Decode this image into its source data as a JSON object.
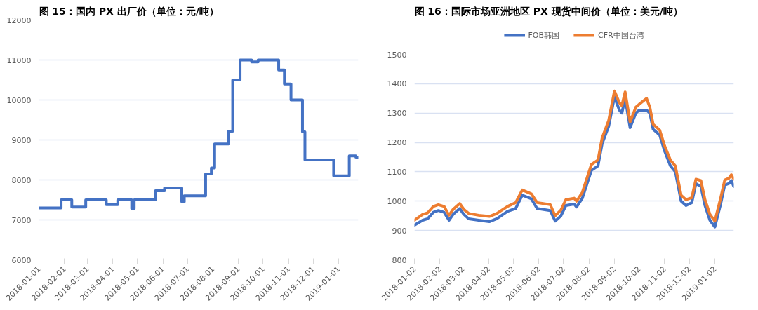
{
  "chart_data": [
    {
      "type": "step",
      "title": "图 15：国内 PX 出厂价（单位：元/吨）",
      "x": [
        "2018-01-01",
        "2018-01-28",
        "2018-02-10",
        "2018-02-27",
        "2018-03-24",
        "2018-04-07",
        "2018-04-24",
        "2018-04-27",
        "2018-05-23",
        "2018-06-03",
        "2018-06-24",
        "2018-06-27",
        "2018-07-23",
        "2018-07-30",
        "2018-08-03",
        "2018-08-20",
        "2018-08-25",
        "2018-09-03",
        "2018-09-17",
        "2018-09-25",
        "2018-10-20",
        "2018-10-27",
        "2018-11-04",
        "2018-11-18",
        "2018-11-21",
        "2018-12-26",
        "2019-01-14",
        "2019-01-22",
        "2019-01-25"
      ],
      "series": [
        {
          "color": "#4472c4",
          "values": [
            7300,
            7500,
            7320,
            7500,
            7380,
            7500,
            7280,
            7500,
            7730,
            7800,
            7450,
            7600,
            8150,
            8300,
            8900,
            9220,
            10500,
            11000,
            10950,
            11000,
            10750,
            10400,
            10000,
            9200,
            8500,
            8100,
            8600,
            8570,
            8570
          ]
        }
      ],
      "xlim": [
        "2018-01-01",
        "2019-01-25"
      ],
      "xticks": [
        "2018-01-01",
        "2018-02-01",
        "2018-03-01",
        "2018-04-01",
        "2018-05-01",
        "2018-06-01",
        "2018-07-01",
        "2018-08-01",
        "2018-09-01",
        "2018-10-01",
        "2018-11-01",
        "2018-12-01",
        "2019-01-01"
      ],
      "ylim": [
        6000,
        12000
      ],
      "yticks": [
        6000,
        7000,
        8000,
        9000,
        10000,
        11000,
        12000
      ],
      "grid": "y",
      "legend": false
    },
    {
      "type": "line",
      "title": "图 16：国际市场亚洲地区 PX 现货中间价（单位：美元/吨）",
      "x": [
        "2018-01-02",
        "2018-01-12",
        "2018-01-18",
        "2018-01-25",
        "2018-01-31",
        "2018-02-07",
        "2018-02-13",
        "2018-02-18",
        "2018-02-26",
        "2018-03-03",
        "2018-03-09",
        "2018-03-21",
        "2018-04-03",
        "2018-04-12",
        "2018-04-25",
        "2018-05-05",
        "2018-05-13",
        "2018-05-24",
        "2018-05-31",
        "2018-06-16",
        "2018-06-22",
        "2018-06-29",
        "2018-07-05",
        "2018-07-15",
        "2018-07-18",
        "2018-07-25",
        "2018-08-05",
        "2018-08-13",
        "2018-08-18",
        "2018-08-26",
        "2018-09-02",
        "2018-09-08",
        "2018-09-11",
        "2018-09-15",
        "2018-09-21",
        "2018-09-28",
        "2018-10-02",
        "2018-10-11",
        "2018-10-15",
        "2018-10-19",
        "2018-10-27",
        "2018-11-02",
        "2018-11-09",
        "2018-11-15",
        "2018-11-22",
        "2018-11-28",
        "2018-12-05",
        "2018-12-10",
        "2018-12-16",
        "2018-12-21",
        "2018-12-27",
        "2019-01-02",
        "2019-01-09",
        "2019-01-14",
        "2019-01-19",
        "2019-01-22",
        "2019-01-25"
      ],
      "series": [
        {
          "name": "FOB韩国",
          "color": "#4472c4",
          "values": [
            918,
            935,
            940,
            962,
            968,
            962,
            935,
            955,
            975,
            955,
            940,
            935,
            930,
            940,
            965,
            975,
            1020,
            1008,
            975,
            968,
            932,
            950,
            985,
            990,
            980,
            1010,
            1105,
            1120,
            1195,
            1255,
            1355,
            1310,
            1300,
            1350,
            1250,
            1300,
            1310,
            1310,
            1300,
            1245,
            1225,
            1170,
            1120,
            1100,
            1000,
            985,
            995,
            1060,
            1050,
            985,
            935,
            912,
            990,
            1055,
            1060,
            1070,
            1050
          ]
        },
        {
          "name": "CFR中国台湾",
          "color": "#ed7d31",
          "values": [
            935,
            955,
            960,
            982,
            988,
            982,
            952,
            972,
            992,
            972,
            958,
            952,
            948,
            958,
            982,
            995,
            1038,
            1025,
            995,
            988,
            950,
            970,
            1005,
            1010,
            1000,
            1030,
            1125,
            1140,
            1215,
            1275,
            1375,
            1335,
            1325,
            1372,
            1270,
            1320,
            1330,
            1350,
            1320,
            1262,
            1242,
            1188,
            1140,
            1120,
            1020,
            1005,
            1012,
            1075,
            1070,
            1005,
            955,
            932,
            1010,
            1072,
            1078,
            1090,
            1075
          ]
        }
      ],
      "xlim": [
        "2018-01-02",
        "2019-01-25"
      ],
      "xticks": [
        "2018-01-02",
        "2018-02-02",
        "2018-03-02",
        "2018-04-02",
        "2018-05-02",
        "2018-06-02",
        "2018-07-02",
        "2018-08-02",
        "2018-09-02",
        "2018-10-02",
        "2018-11-02",
        "2018-12-02",
        "2019-01-02"
      ],
      "ylim": [
        800,
        1500
      ],
      "yticks": [
        800,
        900,
        1000,
        1100,
        1200,
        1300,
        1400,
        1500
      ],
      "grid": "y",
      "legend": "top"
    }
  ]
}
